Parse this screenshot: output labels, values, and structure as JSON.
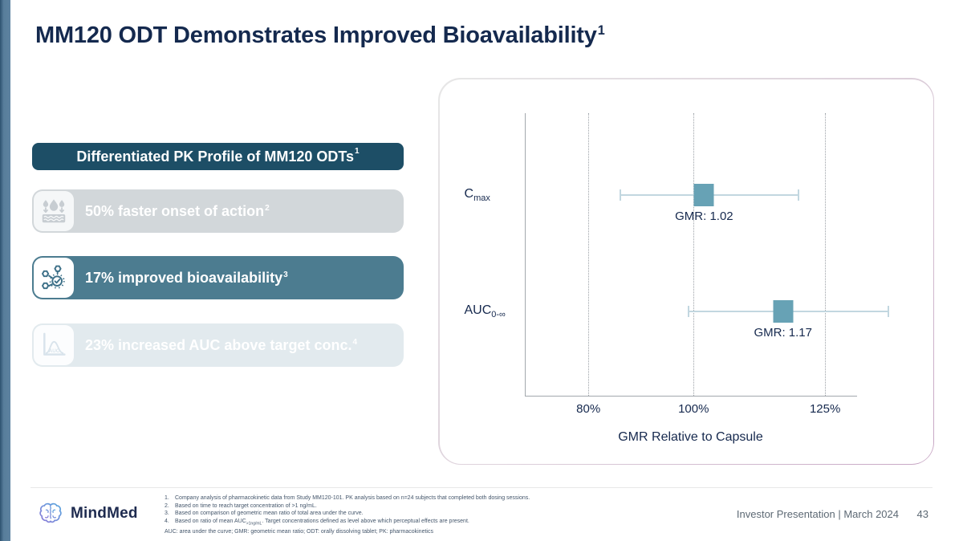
{
  "title": {
    "text": "MM120 ODT Demonstrates Improved Bioavailability",
    "sup": "1"
  },
  "panel": {
    "header": {
      "text": "Differentiated PK Profile of MM120 ODTs",
      "sup": "1"
    },
    "items": [
      {
        "text": "50% faster onset of action",
        "sup": "2",
        "icon": "dissolve-droplets-icon",
        "style": "gray"
      },
      {
        "text": "17% improved bioavailability",
        "sup": "3",
        "icon": "molecule-check-icon",
        "style": "teal"
      },
      {
        "text": "23% increased AUC above target conc.",
        "sup": "4",
        "icon": "auc-curve-icon",
        "style": "light"
      }
    ]
  },
  "chart_data": {
    "type": "scatter",
    "subtype": "dot-plot-with-ci",
    "xlabel": "GMR Relative to Capsule",
    "xlim": [
      68,
      131
    ],
    "grid": "vertical-dotted",
    "x_ticks": [
      {
        "value": 80,
        "label": "80%"
      },
      {
        "value": 100,
        "label": "100%"
      },
      {
        "value": 125,
        "label": "125%"
      }
    ],
    "marker_color": "#67a2b5",
    "whisker_color": "#c2d7e0",
    "series": [
      {
        "name": "Cmax",
        "label_main": "C",
        "label_sub": "max",
        "gmr": 1.02,
        "value_pct": 102,
        "ci_low_pct": 86,
        "ci_high_pct": 120,
        "annotation": "GMR: 1.02",
        "row_frac": 0.292
      },
      {
        "name": "AUC0-inf",
        "label_main": "AUC",
        "label_sub": "0-∞",
        "gmr": 1.17,
        "value_pct": 117,
        "ci_low_pct": 99,
        "ci_high_pct": 137,
        "annotation": "GMR: 1.17",
        "row_frac": 0.704
      }
    ]
  },
  "footnotes": {
    "items": [
      {
        "num": "1.",
        "parts": [
          {
            "t": "Company analysis of pharmacokinetic data from Study MM120-101. PK analysis based on n=24 subjects that completed both dosing sessions."
          }
        ]
      },
      {
        "num": "2.",
        "parts": [
          {
            "t": "Based on time to reach target concentration of >1 ng/mL."
          }
        ]
      },
      {
        "num": "3.",
        "parts": [
          {
            "t": "Based on comparison of geometric mean ratio of total area under the curve."
          }
        ]
      },
      {
        "num": "4.",
        "parts": [
          {
            "t": "Based on ratio of mean AUC"
          },
          {
            "t": ">1ng/mL",
            "sub": true
          },
          {
            "t": ". Target concentrations defined as level above which perceptual effects are present."
          }
        ]
      },
      {
        "num": "",
        "parts": [
          {
            "t": "AUC: area under the curve; GMR: geometric mean ratio; ODT: orally dissolving tablet; PK: pharmacokinetics"
          }
        ]
      }
    ]
  },
  "footer": {
    "brand": "MindMed",
    "right_text": "Investor Presentation | March 2024",
    "page": "43"
  },
  "colors": {
    "accent_bar": "#587e9b",
    "title_navy": "#14294e",
    "header_teal": "#1d4e66",
    "highlight_teal": "#4c7c90",
    "item_gray": "#d2d7da",
    "item_light": "#e2eaee",
    "marker_teal": "#67a2b5",
    "card_border_pink": "#c7a6c4"
  }
}
